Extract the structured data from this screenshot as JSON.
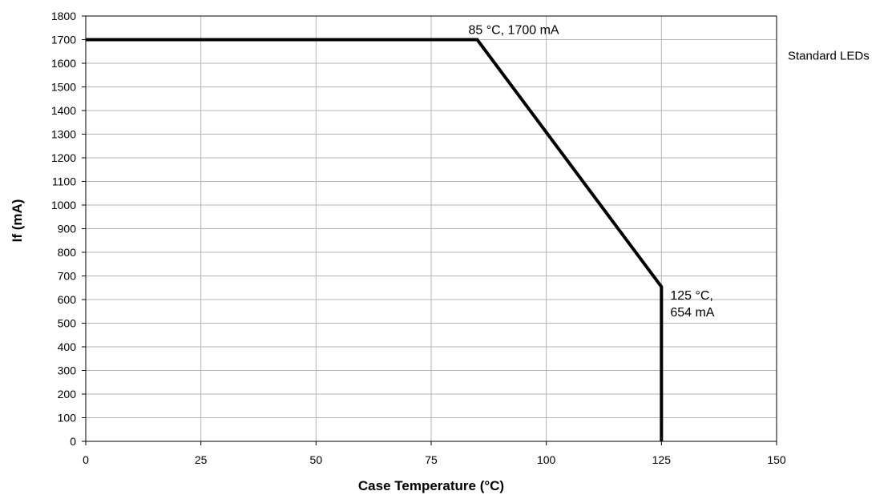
{
  "chart_data": {
    "type": "line",
    "xlabel": "Case Temperature (°C)",
    "ylabel": "If (mA)",
    "xlim": [
      0,
      150
    ],
    "ylim": [
      0,
      1800
    ],
    "x_ticks": [
      0,
      25,
      50,
      75,
      100,
      125,
      150
    ],
    "y_ticks": [
      0,
      100,
      200,
      300,
      400,
      500,
      600,
      700,
      800,
      900,
      1000,
      1100,
      1200,
      1300,
      1400,
      1500,
      1600,
      1700,
      1800
    ],
    "grid": true,
    "legend_placement": "right",
    "series": [
      {
        "name": "Standard LEDs",
        "color": "#000000",
        "x": [
          0,
          85,
          125,
          125
        ],
        "y": [
          1700,
          1700,
          654,
          0
        ]
      }
    ],
    "annotations": [
      {
        "lines": [
          "85 °C, 1700 mA"
        ],
        "x": 85,
        "y": 1700
      },
      {
        "lines": [
          "125 °C,",
          "654 mA"
        ],
        "x": 125,
        "y": 654
      }
    ]
  }
}
